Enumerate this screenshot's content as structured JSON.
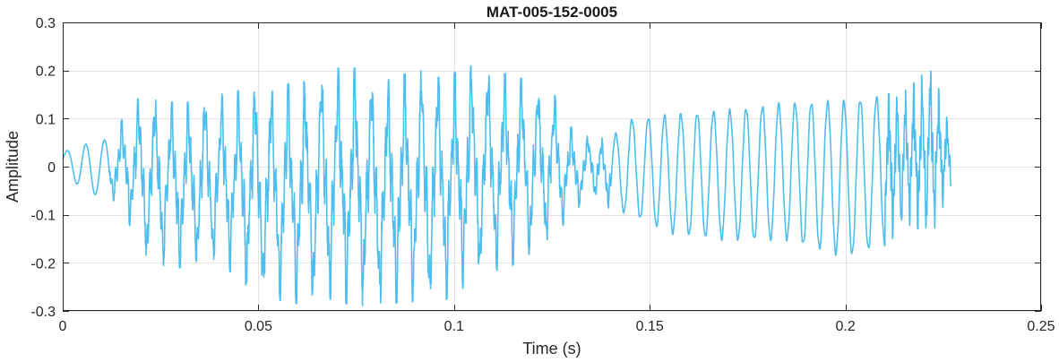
{
  "chart_data": {
    "type": "line",
    "title": "MAT-005-152-0005",
    "xlabel": "Time (s)",
    "ylabel": "Amplitude",
    "xlim": [
      0,
      0.25
    ],
    "ylim": [
      -0.3,
      0.3
    ],
    "xticks": [
      0,
      0.05,
      0.1,
      0.15,
      0.2,
      0.25
    ],
    "xtick_labels": [
      "0",
      "0.05",
      "0.1",
      "0.15",
      "0.2",
      "0.25"
    ],
    "yticks": [
      -0.3,
      -0.2,
      -0.1,
      0,
      0.1,
      0.2,
      0.3
    ],
    "ytick_labels": [
      "-0.3",
      "-0.2",
      "-0.1",
      "0",
      "0.1",
      "0.2",
      "0.3"
    ],
    "grid": true,
    "line_color": "#4DBEEE",
    "series": [
      {
        "x_range": [
          0,
          0.227
        ],
        "envelope_max": [
          [
            0,
            0.03
          ],
          [
            0.005,
            0.045
          ],
          [
            0.013,
            0.06
          ],
          [
            0.017,
            0.13
          ],
          [
            0.021,
            0.15
          ],
          [
            0.03,
            0.13
          ],
          [
            0.04,
            0.15
          ],
          [
            0.046,
            0.16
          ],
          [
            0.05,
            0.18
          ],
          [
            0.06,
            0.17
          ],
          [
            0.068,
            0.205
          ],
          [
            0.075,
            0.205
          ],
          [
            0.083,
            0.18
          ],
          [
            0.09,
            0.2
          ],
          [
            0.1,
            0.195
          ],
          [
            0.104,
            0.21
          ],
          [
            0.115,
            0.19
          ],
          [
            0.125,
            0.16
          ],
          [
            0.13,
            0.08
          ],
          [
            0.135,
            0.06
          ],
          [
            0.14,
            0.06
          ],
          [
            0.145,
            0.1
          ],
          [
            0.155,
            0.11
          ],
          [
            0.17,
            0.12
          ],
          [
            0.185,
            0.135
          ],
          [
            0.2,
            0.14
          ],
          [
            0.21,
            0.15
          ],
          [
            0.216,
            0.16
          ],
          [
            0.222,
            0.215
          ],
          [
            0.227,
            0.07
          ]
        ],
        "envelope_min": [
          [
            0,
            0.0
          ],
          [
            0.005,
            -0.05
          ],
          [
            0.013,
            -0.07
          ],
          [
            0.017,
            -0.12
          ],
          [
            0.021,
            -0.2
          ],
          [
            0.03,
            -0.21
          ],
          [
            0.04,
            -0.2
          ],
          [
            0.046,
            -0.24
          ],
          [
            0.05,
            -0.27
          ],
          [
            0.06,
            -0.285
          ],
          [
            0.068,
            -0.275
          ],
          [
            0.075,
            -0.29
          ],
          [
            0.083,
            -0.285
          ],
          [
            0.09,
            -0.28
          ],
          [
            0.1,
            -0.275
          ],
          [
            0.104,
            -0.235
          ],
          [
            0.115,
            -0.205
          ],
          [
            0.125,
            -0.15
          ],
          [
            0.13,
            -0.1
          ],
          [
            0.135,
            -0.06
          ],
          [
            0.14,
            -0.09
          ],
          [
            0.145,
            -0.1
          ],
          [
            0.155,
            -0.14
          ],
          [
            0.17,
            -0.155
          ],
          [
            0.185,
            -0.155
          ],
          [
            0.2,
            -0.19
          ],
          [
            0.21,
            -0.165
          ],
          [
            0.216,
            -0.12
          ],
          [
            0.222,
            -0.145
          ],
          [
            0.227,
            -0.04
          ]
        ]
      }
    ]
  }
}
